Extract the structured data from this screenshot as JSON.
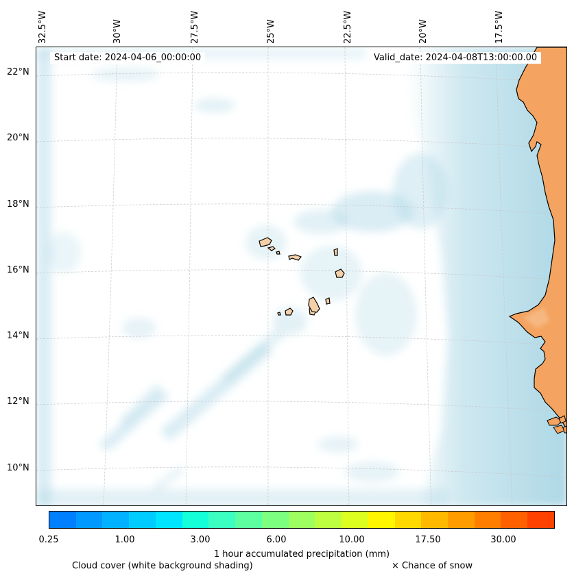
{
  "map": {
    "start_date": "Start date: 2024-04-06_00:00:00",
    "valid_date": "Valid_date: 2024-04-08T13:00:00.00",
    "lon_labels": [
      "32.5°W",
      "30°W",
      "27.5°W",
      "25°W",
      "22.5°W",
      "20°W",
      "17.5°W"
    ],
    "lat_labels": [
      "22°N",
      "20°N",
      "18°N",
      "16°N",
      "14°N",
      "12°N",
      "10°N"
    ],
    "colors": {
      "land": "#f4a460",
      "ocean_cloud": "#add8e6",
      "coast": "#000000",
      "grid": "#cccccc"
    }
  },
  "colorbar": {
    "title": "1 hour accumulated precipitation (mm)",
    "tick_labels": [
      "0.25",
      "1.00",
      "3.00",
      "6.00",
      "10.00",
      "17.50",
      "30.00"
    ],
    "colors": [
      "#0080ff",
      "#0099ff",
      "#00b2ff",
      "#00ccff",
      "#00e5ff",
      "#14ffd8",
      "#3bffc0",
      "#5cffa0",
      "#7dff80",
      "#9dff60",
      "#bdff40",
      "#ddff20",
      "#fff600",
      "#ffd800",
      "#ffba00",
      "#ff9c00",
      "#ff7e00",
      "#ff6000",
      "#ff4200"
    ]
  },
  "legend": {
    "cloud_cover": "Cloud cover (white background shading)",
    "snow": "× Chance of snow"
  }
}
